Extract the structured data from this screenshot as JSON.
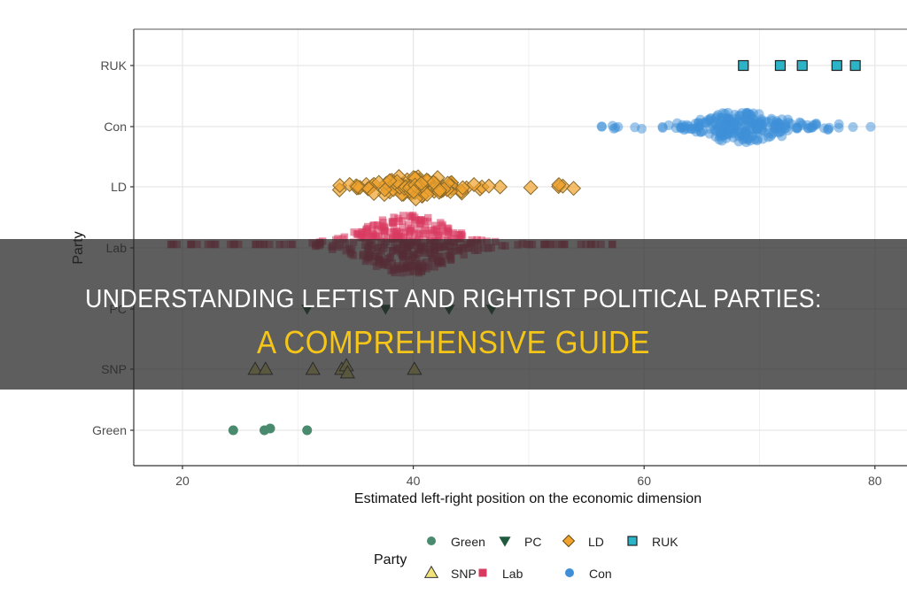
{
  "headline": {
    "line1": "UNDERSTANDING LEFTIST AND RIGHTIST POLITICAL PARTIES:",
    "line2": "A COMPREHENSIVE GUIDE",
    "line1_color": "#ffffff",
    "line2_color": "#f5c518"
  },
  "chart_data": {
    "type": "scatter",
    "title": "",
    "xlabel": "Estimated left-right position on the economic dimension",
    "ylabel": "Party",
    "xlim": [
      16,
      83
    ],
    "xticks": [
      20,
      40,
      60,
      80
    ],
    "categories": [
      "Green",
      "SNP",
      "PC",
      "Lab",
      "LD",
      "Con",
      "RUK"
    ],
    "grid": true,
    "legend": {
      "title": "Party",
      "position": "bottom",
      "entries": [
        {
          "name": "Green",
          "shape": "circle",
          "color": "#4a8a6e"
        },
        {
          "name": "PC",
          "shape": "triangle-down",
          "color": "#1f5a3e"
        },
        {
          "name": "LD",
          "shape": "diamond",
          "color": "#f0a22e"
        },
        {
          "name": "RUK",
          "shape": "square",
          "color": "#2bb3c8"
        },
        {
          "name": "SNP",
          "shape": "triangle-up",
          "color": "#f2e27a"
        },
        {
          "name": "Lab",
          "shape": "square",
          "color": "#d93a60"
        },
        {
          "name": "Con",
          "shape": "circle",
          "color": "#3e8fd8"
        }
      ]
    },
    "series": [
      {
        "name": "Green",
        "values": [
          24.4,
          27.1,
          27.6,
          30.8
        ]
      },
      {
        "name": "SNP",
        "values": [
          26.3,
          27.2,
          31.3,
          33.8,
          34.2,
          34.3,
          40.1
        ]
      },
      {
        "name": "PC",
        "values": [
          30.8,
          37.6,
          43.1,
          46.8
        ]
      },
      {
        "name": "Lab",
        "range": [
          19,
          57.5
        ],
        "peak": 39.5,
        "n_approx": 400
      },
      {
        "name": "LD",
        "range": [
          33.5,
          54
        ],
        "peak": 40,
        "n_approx": 120
      },
      {
        "name": "Con",
        "range": [
          54.6,
          81
        ],
        "peak": 68.5,
        "n_approx": 250
      },
      {
        "name": "RUK",
        "values": [
          68.6,
          71.8,
          73.7,
          76.7,
          78.3
        ]
      }
    ]
  }
}
